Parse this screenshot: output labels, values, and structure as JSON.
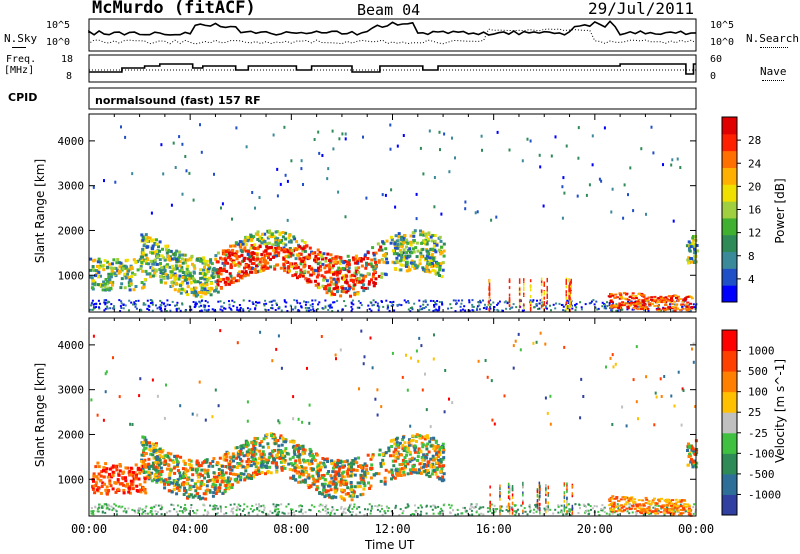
{
  "header": {
    "station": "McMurdo (fitACF)",
    "beam": "Beam 04",
    "date": "29/Jul/2011"
  },
  "noise_panel": {
    "left_label": "N.Sky",
    "left_ticks": [
      "10^5",
      "10^0"
    ],
    "right_label": "N.Search",
    "right_ticks": [
      "10^5",
      "10^0"
    ]
  },
  "freq_panel": {
    "left_label_1": "Freq.",
    "left_label_2": "[MHz]",
    "left_ticks": [
      "18",
      "8"
    ],
    "right_label": "Nave",
    "right_ticks": [
      "60",
      "0"
    ]
  },
  "cpid": {
    "label": "CPID",
    "value": "normalsound (fast) 157 RF"
  },
  "chart_data": [
    {
      "type": "heatmap",
      "name_hint": "power",
      "ylabel": "Slant Range [km]",
      "ylim": [
        180,
        4600
      ],
      "yticks": [
        "4000",
        "3000",
        "2000",
        "1000"
      ],
      "xlim_hours": [
        0,
        24
      ],
      "colorbar": {
        "label": "Power [dB]",
        "ticks": [
          "28",
          "24",
          "20",
          "16",
          "12",
          "8",
          "4"
        ],
        "colors": [
          "#0000ff",
          "#2050c8",
          "#3a8a9a",
          "#2e8b57",
          "#40b030",
          "#a0d040",
          "#f0e000",
          "#ffb000",
          "#ff7000",
          "#ff2000",
          "#e00000"
        ]
      },
      "regions": [
        {
          "t0": 1.8,
          "t1": 14.0,
          "r0": 800,
          "r1": 2000,
          "level": "moderate"
        },
        {
          "t0": 5.0,
          "t1": 12.0,
          "r0": 800,
          "r1": 1700,
          "level": "strong"
        },
        {
          "t0": 20.5,
          "t1": 23.8,
          "r0": 200,
          "r1": 600,
          "level": "strong"
        }
      ]
    },
    {
      "type": "heatmap",
      "name_hint": "velocity",
      "ylabel": "Slant Range [km]",
      "ylim": [
        180,
        4600
      ],
      "yticks": [
        "4000",
        "3000",
        "2000",
        "1000"
      ],
      "xlim_hours": [
        0,
        24
      ],
      "xticks": [
        "00:00",
        "04:00",
        "08:00",
        "12:00",
        "16:00",
        "20:00",
        "00:00"
      ],
      "xlabel": "Time UT",
      "colorbar": {
        "label": "Velocity [m s^-1]",
        "ticks": [
          "1000",
          "500",
          "100",
          "25",
          "-25",
          "-100",
          "-500",
          "-1000"
        ],
        "colors": [
          "#3040a0",
          "#2e6f9a",
          "#2e8b57",
          "#40c040",
          "#c0c0c0",
          "#ffc000",
          "#ff8000",
          "#ff4000",
          "#ff0000"
        ]
      }
    }
  ]
}
